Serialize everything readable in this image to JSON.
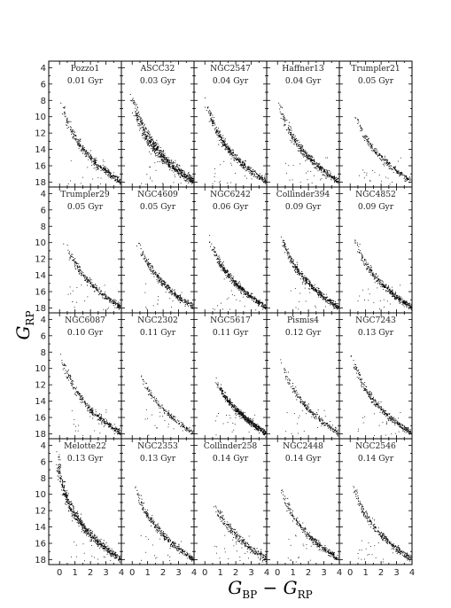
{
  "chart_data": {
    "type": "scatter",
    "layout": {
      "rows": 4,
      "cols": 5,
      "shared_axes": true
    },
    "xlabel": "G_BP − G_RP",
    "ylabel": "G_RP",
    "xlim": [
      -0.7,
      4
    ],
    "ylim": [
      18.6,
      3.2
    ],
    "y_inverted": true,
    "xticks": [
      "0",
      "1",
      "2",
      "3",
      "4"
    ],
    "yticks": [
      "4",
      "6",
      "8",
      "10",
      "12",
      "14",
      "16",
      "18"
    ],
    "point_color": "#000000",
    "panels": [
      {
        "name": "Pozzo1",
        "age": "0.01 Gyr",
        "density": 0.45,
        "top_mag": 8.0,
        "spread": 0.1,
        "mag_curve": 0.13
      },
      {
        "name": "ASCC32",
        "age": "0.03 Gyr",
        "density": 1.0,
        "top_mag": 7.0,
        "spread": 0.14,
        "mag_curve": 0.13
      },
      {
        "name": "NGC2547",
        "age": "0.04 Gyr",
        "density": 0.55,
        "top_mag": 7.5,
        "spread": 0.09,
        "mag_curve": 0.13
      },
      {
        "name": "Haffner13",
        "age": "0.04 Gyr",
        "density": 0.5,
        "top_mag": 8.0,
        "spread": 0.1,
        "mag_curve": 0.13
      },
      {
        "name": "Trumpler21",
        "age": "0.05 Gyr",
        "density": 0.25,
        "top_mag": 9.0,
        "spread": 0.08,
        "mag_curve": 0.13
      },
      {
        "name": "Trumpler29",
        "age": "0.05 Gyr",
        "density": 0.35,
        "top_mag": 10.0,
        "spread": 0.1,
        "mag_curve": 0.13
      },
      {
        "name": "NGC4609",
        "age": "0.05 Gyr",
        "density": 0.35,
        "top_mag": 9.0,
        "spread": 0.1,
        "mag_curve": 0.13
      },
      {
        "name": "NGC6242",
        "age": "0.06 Gyr",
        "density": 0.55,
        "top_mag": 9.0,
        "spread": 0.09,
        "mag_curve": 0.13
      },
      {
        "name": "Collinder394",
        "age": "0.09 Gyr",
        "density": 0.55,
        "top_mag": 8.5,
        "spread": 0.09,
        "mag_curve": 0.13
      },
      {
        "name": "NGC4852",
        "age": "0.09 Gyr",
        "density": 0.45,
        "top_mag": 9.5,
        "spread": 0.1,
        "mag_curve": 0.13
      },
      {
        "name": "NGC6087",
        "age": "0.10 Gyr",
        "density": 0.35,
        "top_mag": 8.0,
        "spread": 0.09,
        "mag_curve": 0.13
      },
      {
        "name": "NGC2302",
        "age": "0.11 Gyr",
        "density": 0.15,
        "top_mag": 10.0,
        "spread": 0.08,
        "mag_curve": 0.13
      },
      {
        "name": "NGC5617",
        "age": "0.11 Gyr",
        "density": 0.7,
        "top_mag": 11.0,
        "spread": 0.1,
        "mag_curve": 0.13
      },
      {
        "name": "Pismis4",
        "age": "0.12 Gyr",
        "density": 0.25,
        "top_mag": 8.5,
        "spread": 0.09,
        "mag_curve": 0.13
      },
      {
        "name": "NGC7243",
        "age": "0.13 Gyr",
        "density": 0.4,
        "top_mag": 8.0,
        "spread": 0.08,
        "mag_curve": 0.13
      },
      {
        "name": "Melotte22",
        "age": "0.13 Gyr",
        "density": 0.85,
        "top_mag": 4.5,
        "spread": 0.09,
        "mag_curve": 0.13
      },
      {
        "name": "NGC2353",
        "age": "0.13 Gyr",
        "density": 0.35,
        "top_mag": 8.5,
        "spread": 0.09,
        "mag_curve": 0.13
      },
      {
        "name": "Collinder258",
        "age": "0.14 Gyr",
        "density": 0.3,
        "top_mag": 10.5,
        "spread": 0.14,
        "mag_curve": 0.13
      },
      {
        "name": "NGC2448",
        "age": "0.14 Gyr",
        "density": 0.35,
        "top_mag": 9.0,
        "spread": 0.1,
        "mag_curve": 0.13
      },
      {
        "name": "NGC2546",
        "age": "0.14 Gyr",
        "density": 0.35,
        "top_mag": 8.5,
        "spread": 0.1,
        "mag_curve": 0.13
      }
    ]
  }
}
